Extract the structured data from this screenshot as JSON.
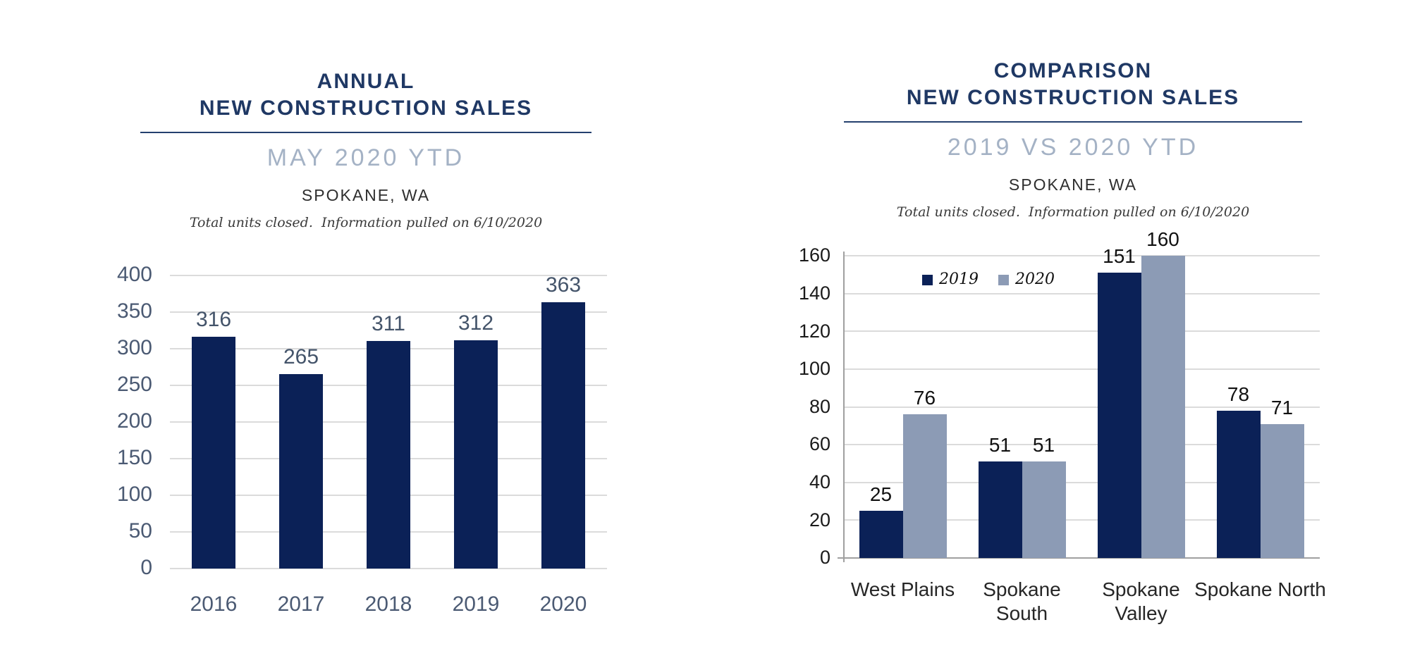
{
  "colors": {
    "navy_bar": "#0b2157",
    "gray_blue_bar": "#8c9bb5",
    "title_navy": "#1f3864",
    "subtitle_gray_blue": "#a4b2c5",
    "left_axis_slate": "#4b5a73",
    "right_axis_black": "#1b1b1b",
    "gridline_gray": "#dbdbdb"
  },
  "chart_data": [
    {
      "type": "bar",
      "title": "ANNUAL NEW CONSTRUCTION SALES",
      "title_lines": [
        "ANNUAL",
        "NEW CONSTRUCTION SALES"
      ],
      "subtitle": "MAY 2020 YTD",
      "location": "SPOKANE, WA",
      "note": "Total units closed.  Information pulled on 6/10/2020",
      "categories": [
        "2016",
        "2017",
        "2018",
        "2019",
        "2020"
      ],
      "values": [
        316,
        265,
        311,
        312,
        363
      ],
      "bar_color": "#0b2157",
      "xlabel": "",
      "ylabel": "",
      "ylim": [
        0,
        400
      ],
      "ytick_step": 50,
      "grid": true,
      "legend": false
    },
    {
      "type": "bar",
      "title": "COMPARISON NEW CONSTRUCTION SALES",
      "title_lines": [
        "COMPARISON",
        "NEW CONSTRUCTION SALES"
      ],
      "subtitle": "2019 VS 2020 YTD",
      "location": "SPOKANE, WA",
      "note": "Total units closed.  Information pulled on 6/10/2020",
      "categories": [
        "West Plains",
        "Spokane South",
        "Spokane Valley",
        "Spokane North"
      ],
      "series": [
        {
          "name": "2019",
          "values": [
            25,
            51,
            151,
            78
          ],
          "color": "#0b2157"
        },
        {
          "name": "2020",
          "values": [
            76,
            51,
            160,
            71
          ],
          "color": "#8c9bb5"
        }
      ],
      "xlabel": "",
      "ylabel": "",
      "ylim": [
        0,
        160
      ],
      "ytick_step": 20,
      "grid": true,
      "legend": true,
      "legend_position": "top-inside"
    }
  ]
}
